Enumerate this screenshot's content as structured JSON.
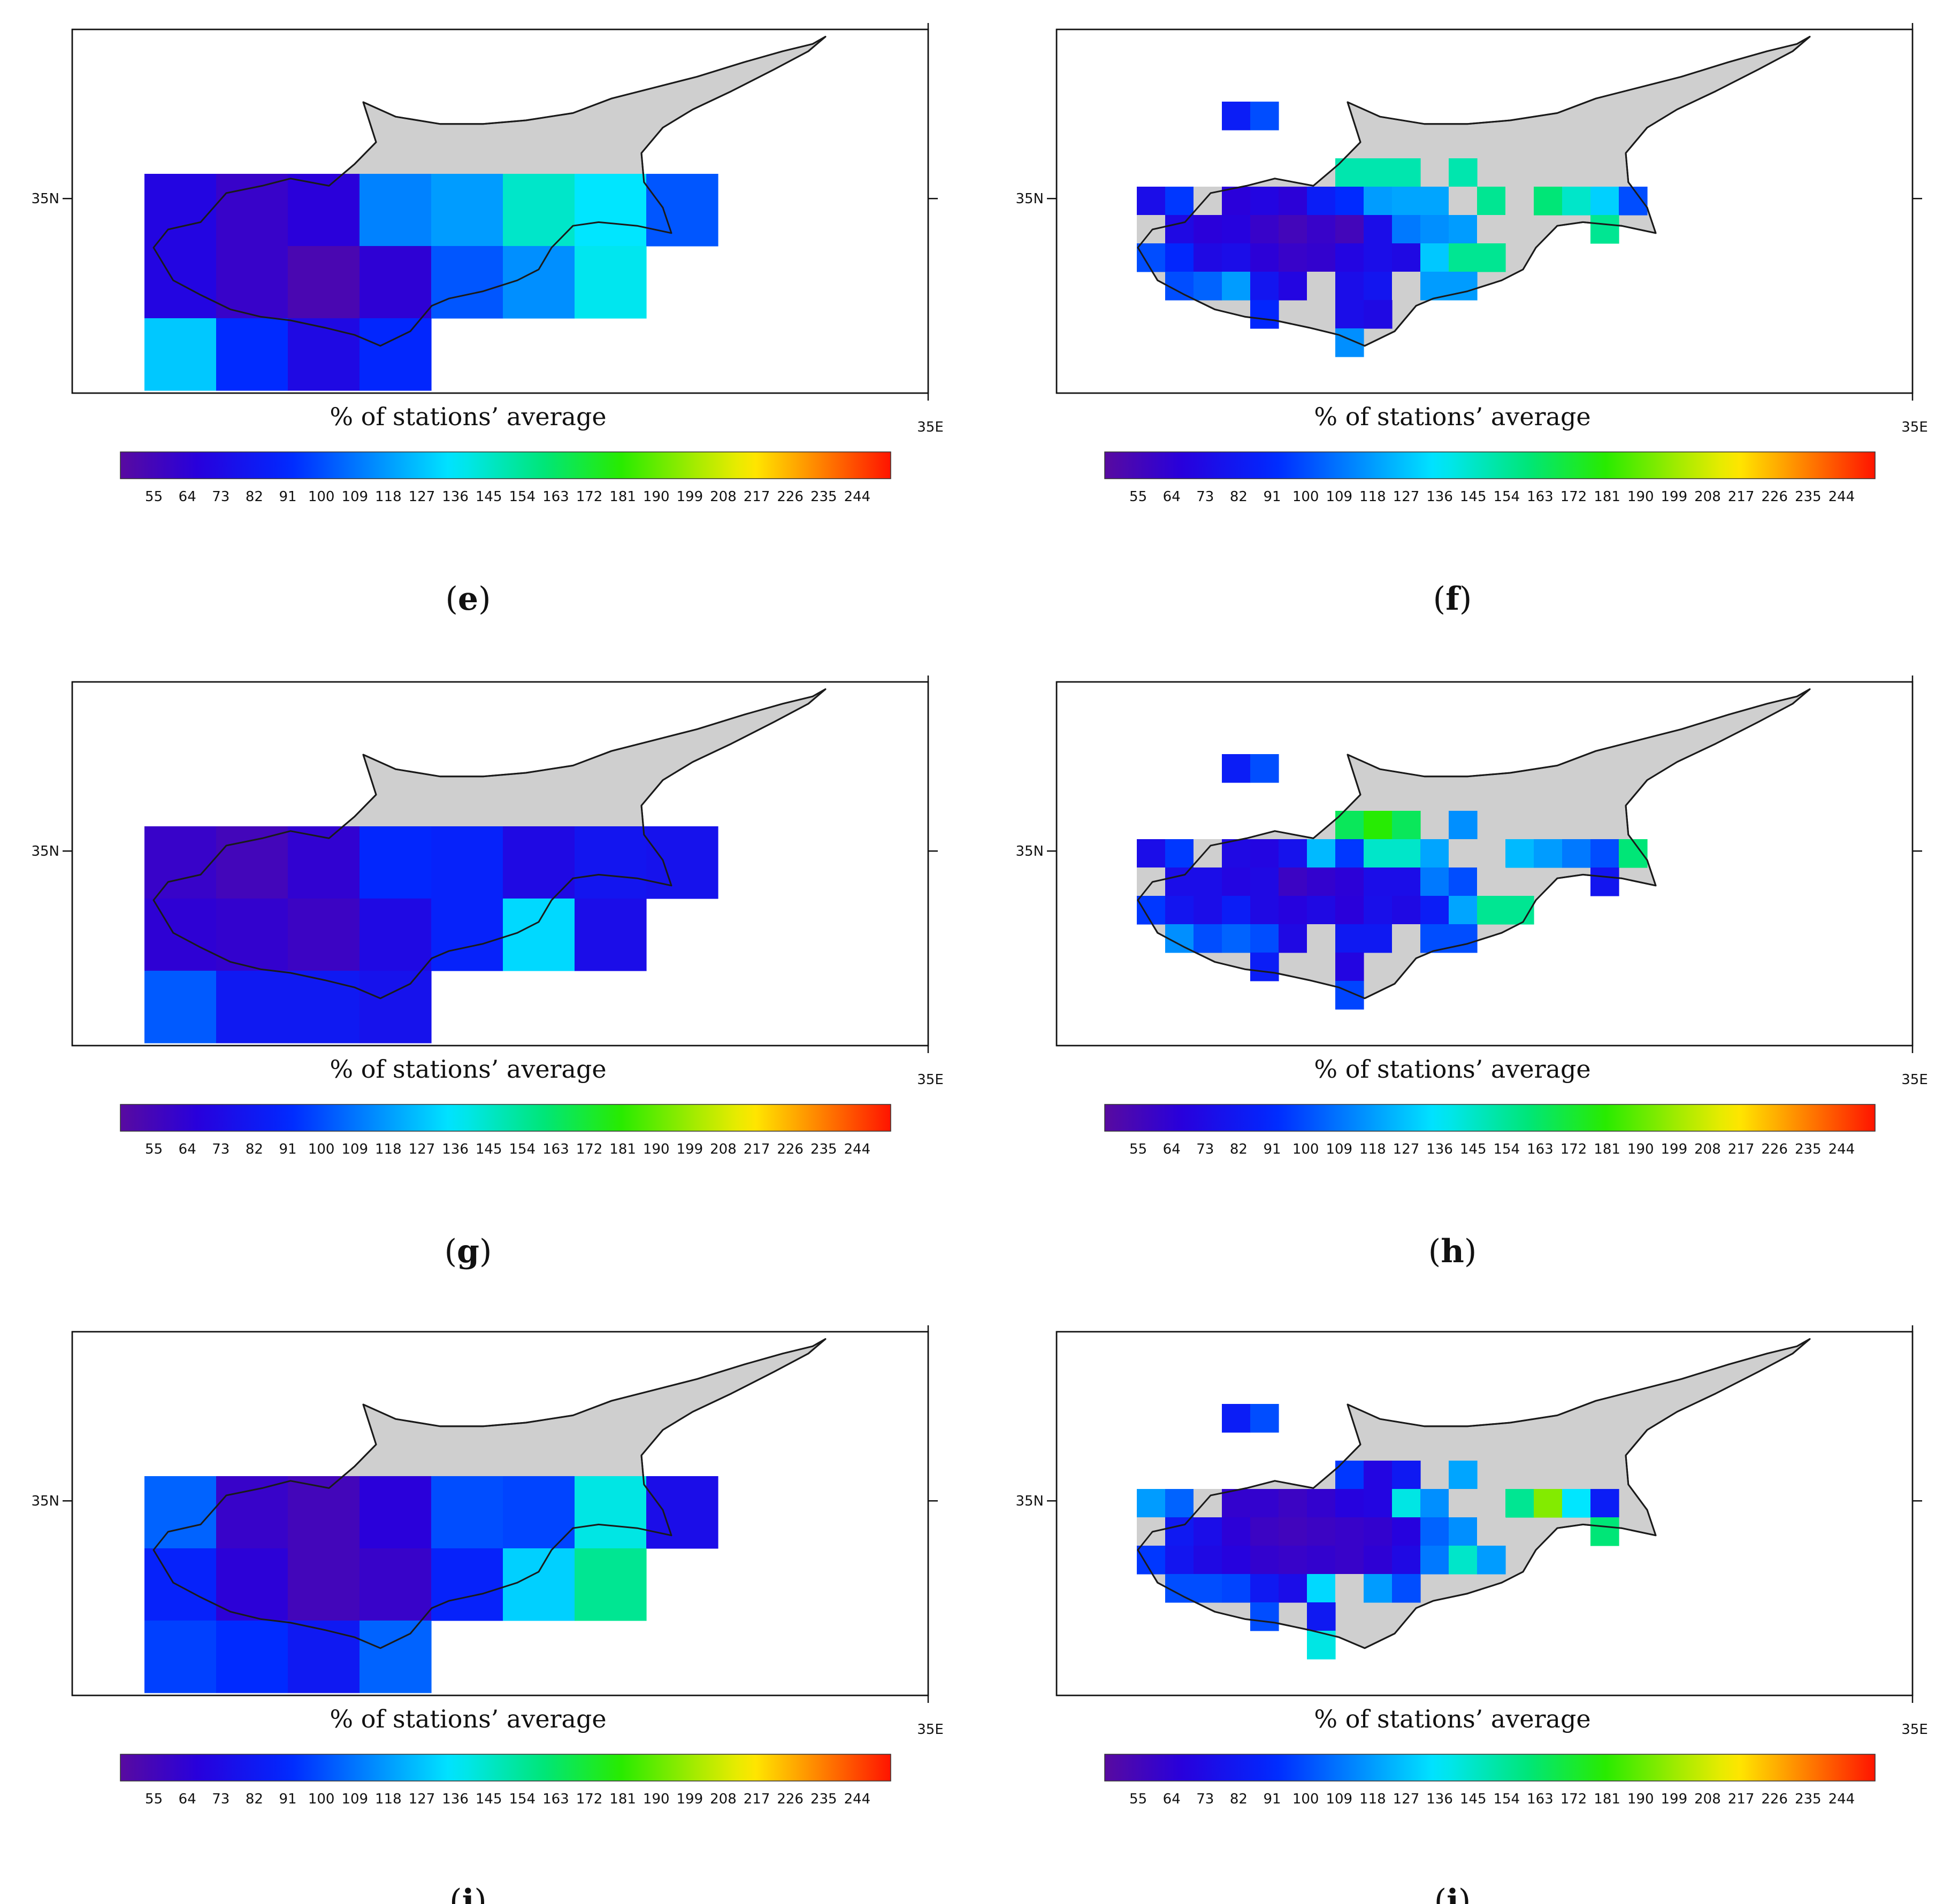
{
  "figure": {
    "panel_labels": [
      "e",
      "f",
      "g",
      "h",
      "i",
      "j"
    ]
  },
  "chart_data": [
    {
      "type": "heatmap",
      "panel": "e",
      "grid": "coarse",
      "xlabel": "35E",
      "ylabel": "35N",
      "title": "% of stations’ average",
      "colorbar": {
        "ticks": [
          55,
          64,
          73,
          82,
          91,
          100,
          109,
          118,
          127,
          136,
          145,
          154,
          163,
          172,
          181,
          190,
          199,
          208,
          217,
          226,
          235,
          244
        ],
        "range": [
          46,
          253
        ],
        "colormap": "rainbow"
      },
      "land_color": "#cfcfcf",
      "rows": [
        [
          null,
          null,
          null,
          null,
          null,
          null,
          null,
          null,
          null,
          null
        ],
        [
          70,
          60,
          66,
          112,
          118,
          145,
          135,
          102,
          null,
          null
        ],
        [
          70,
          60,
          52,
          64,
          102,
          115,
          138,
          null,
          null,
          null
        ],
        [
          128,
          92,
          72,
          90,
          null,
          null,
          null,
          null,
          null,
          null
        ]
      ]
    },
    {
      "type": "heatmap",
      "panel": "f",
      "grid": "fine",
      "xlabel": "35E",
      "ylabel": "35N",
      "title": "% of stations’ average",
      "colorbar": {
        "ticks": [
          55,
          64,
          73,
          82,
          91,
          100,
          109,
          118,
          127,
          136,
          145,
          154,
          163,
          172,
          181,
          190,
          199,
          208,
          217,
          226,
          235,
          244
        ],
        "range": [
          46,
          253
        ],
        "colormap": "rainbow"
      },
      "land_color": "#cfcfcf",
      "rows": [
        [
          null,
          null,
          null,
          85,
          100,
          null,
          null,
          null,
          null,
          null,
          null,
          null,
          null,
          null,
          null,
          null,
          null,
          null,
          null,
          null,
          null,
          null,
          null,
          null
        ],
        [
          null,
          null,
          null,
          null,
          null,
          null,
          null,
          null,
          null,
          null,
          null,
          null,
          null,
          null,
          null,
          null,
          null,
          null,
          null,
          null,
          null,
          null,
          null,
          null
        ],
        [
          null,
          null,
          null,
          null,
          null,
          null,
          null,
          150,
          150,
          150,
          null,
          150,
          null,
          null,
          null,
          null,
          null,
          null,
          null,
          null,
          null,
          null,
          null,
          null
        ],
        [
          75,
          95,
          "L",
          66,
          70,
          65,
          85,
          92,
          118,
          120,
          120,
          "L",
          155,
          "L",
          160,
          145,
          130,
          100,
          null,
          null,
          null,
          null,
          null,
          null
        ],
        [
          "L",
          72,
          66,
          68,
          60,
          55,
          60,
          55,
          75,
          110,
          115,
          118,
          "L",
          null,
          null,
          null,
          155,
          null,
          null,
          null,
          null,
          null,
          null,
          null
        ],
        [
          100,
          90,
          72,
          75,
          65,
          60,
          62,
          70,
          75,
          72,
          128,
          155,
          155,
          null,
          null,
          null,
          null,
          null,
          null,
          null,
          null,
          null,
          null,
          null
        ],
        [
          null,
          100,
          105,
          118,
          80,
          70,
          "L",
          75,
          80,
          "L",
          118,
          118,
          null,
          null,
          null,
          null,
          null,
          null,
          null,
          null,
          null,
          null,
          null,
          null
        ],
        [
          null,
          null,
          null,
          null,
          90,
          null,
          null,
          75,
          72,
          null,
          null,
          null,
          null,
          null,
          null,
          null,
          null,
          null,
          null,
          null,
          null,
          null,
          null,
          null
        ],
        [
          null,
          null,
          null,
          null,
          null,
          null,
          null,
          115,
          null,
          null,
          null,
          null,
          null,
          null,
          null,
          null,
          null,
          null,
          null,
          null,
          null,
          null,
          null,
          null
        ]
      ]
    },
    {
      "type": "heatmap",
      "panel": "g",
      "grid": "coarse",
      "xlabel": "35E",
      "ylabel": "35N",
      "title": "% of stations’ average",
      "colorbar": {
        "ticks": [
          55,
          64,
          73,
          82,
          91,
          100,
          109,
          118,
          127,
          136,
          145,
          154,
          163,
          172,
          181,
          190,
          199,
          208,
          217,
          226,
          235,
          244
        ],
        "range": [
          46,
          253
        ],
        "colormap": "rainbow"
      },
      "land_color": "#cfcfcf",
      "rows": [
        [
          null,
          null,
          null,
          null,
          null,
          null,
          null,
          null,
          null,
          null
        ],
        [
          60,
          55,
          63,
          90,
          88,
          72,
          80,
          78,
          null,
          null
        ],
        [
          64,
          62,
          58,
          72,
          88,
          132,
          75,
          null,
          null,
          null
        ],
        [
          103,
          82,
          82,
          78,
          null,
          null,
          null,
          null,
          null,
          null
        ]
      ]
    },
    {
      "type": "heatmap",
      "panel": "h",
      "grid": "fine",
      "xlabel": "35E",
      "ylabel": "35N",
      "title": "% of stations’ average",
      "colorbar": {
        "ticks": [
          55,
          64,
          73,
          82,
          91,
          100,
          109,
          118,
          127,
          136,
          145,
          154,
          163,
          172,
          181,
          190,
          199,
          208,
          217,
          226,
          235,
          244
        ],
        "range": [
          46,
          253
        ],
        "colormap": "rainbow"
      },
      "land_color": "#cfcfcf",
      "rows": [
        [
          null,
          null,
          null,
          85,
          100,
          null,
          null,
          null,
          null,
          null,
          null,
          null,
          null,
          null,
          null,
          null,
          null,
          null,
          null,
          null,
          null,
          null,
          null,
          null
        ],
        [
          null,
          null,
          null,
          null,
          null,
          null,
          null,
          null,
          null,
          null,
          null,
          null,
          null,
          null,
          null,
          null,
          null,
          null,
          null,
          null,
          null,
          null,
          null,
          null
        ],
        [
          null,
          null,
          null,
          null,
          null,
          null,
          null,
          165,
          180,
          165,
          null,
          115,
          null,
          null,
          null,
          null,
          null,
          null,
          null,
          null,
          null,
          null,
          null,
          null
        ],
        [
          75,
          95,
          "L",
          72,
          70,
          78,
          125,
          95,
          145,
          145,
          120,
          "L",
          null,
          125,
          118,
          110,
          100,
          160,
          null,
          null,
          null,
          null,
          null,
          null
        ],
        [
          "L",
          75,
          75,
          70,
          72,
          58,
          62,
          65,
          75,
          75,
          110,
          100,
          "L",
          null,
          null,
          null,
          80,
          null,
          null,
          null,
          null,
          null,
          null,
          null
        ],
        [
          95,
          80,
          75,
          85,
          72,
          68,
          72,
          66,
          76,
          72,
          85,
          120,
          155,
          155,
          null,
          null,
          null,
          null,
          null,
          null,
          null,
          null,
          null,
          null
        ],
        [
          null,
          115,
          100,
          105,
          100,
          72,
          "L",
          82,
          82,
          "L",
          100,
          100,
          null,
          null,
          null,
          null,
          null,
          null,
          null,
          null,
          null,
          null,
          null,
          null
        ],
        [
          null,
          null,
          null,
          null,
          85,
          null,
          null,
          70,
          null,
          null,
          null,
          null,
          null,
          null,
          null,
          null,
          null,
          null,
          null,
          null,
          null,
          null,
          null,
          null
        ],
        [
          null,
          null,
          null,
          null,
          null,
          null,
          null,
          98,
          null,
          null,
          null,
          null,
          null,
          null,
          null,
          null,
          null,
          null,
          null,
          null,
          null,
          null,
          null,
          null
        ]
      ]
    },
    {
      "type": "heatmap",
      "panel": "i",
      "grid": "coarse",
      "xlabel": "35E",
      "ylabel": "35N",
      "title": "% of stations’ average",
      "colorbar": {
        "ticks": [
          55,
          64,
          73,
          82,
          91,
          100,
          109,
          118,
          127,
          136,
          145,
          154,
          163,
          172,
          181,
          190,
          199,
          208,
          217,
          226,
          235,
          244
        ],
        "range": [
          46,
          253
        ],
        "colormap": "rainbow"
      },
      "land_color": "#cfcfcf",
      "rows": [
        [
          null,
          null,
          null,
          null,
          null,
          null,
          null,
          null,
          null,
          null
        ],
        [
          105,
          60,
          55,
          66,
          100,
          98,
          140,
          75,
          null,
          null
        ],
        [
          88,
          65,
          55,
          60,
          88,
          130,
          155,
          null,
          null,
          null
        ],
        [
          97,
          92,
          82,
          105,
          null,
          null,
          null,
          null,
          null,
          null
        ]
      ]
    },
    {
      "type": "heatmap",
      "panel": "j",
      "grid": "fine",
      "xlabel": "35E",
      "ylabel": "35N",
      "title": "% of stations’ average",
      "colorbar": {
        "ticks": [
          55,
          64,
          73,
          82,
          91,
          100,
          109,
          118,
          127,
          136,
          145,
          154,
          163,
          172,
          181,
          190,
          199,
          208,
          217,
          226,
          235,
          244
        ],
        "range": [
          46,
          253
        ],
        "colormap": "rainbow"
      },
      "land_color": "#cfcfcf",
      "rows": [
        [
          null,
          null,
          null,
          85,
          100,
          null,
          null,
          null,
          null,
          null,
          null,
          null,
          null,
          null,
          null,
          null,
          null,
          null,
          null,
          null,
          null,
          null,
          null,
          null
        ],
        [
          null,
          null,
          null,
          null,
          null,
          null,
          null,
          null,
          null,
          null,
          null,
          null,
          null,
          null,
          null,
          null,
          null,
          null,
          null,
          null,
          null,
          null,
          null,
          null
        ],
        [
          null,
          null,
          null,
          null,
          null,
          null,
          null,
          95,
          70,
          82,
          null,
          120,
          null,
          null,
          null,
          null,
          null,
          null,
          null,
          null,
          null,
          null,
          null,
          null
        ],
        [
          118,
          105,
          "L",
          62,
          62,
          58,
          62,
          68,
          70,
          140,
          115,
          "L",
          "L",
          155,
          195,
          135,
          85,
          null,
          null,
          null,
          null,
          null,
          null,
          null
        ],
        [
          "L",
          82,
          75,
          65,
          58,
          56,
          58,
          60,
          62,
          68,
          105,
          115,
          "L",
          null,
          null,
          null,
          160,
          null,
          null,
          null,
          null,
          null,
          null,
          null
        ],
        [
          95,
          80,
          72,
          68,
          62,
          60,
          62,
          60,
          64,
          72,
          110,
          145,
          118,
          null,
          null,
          null,
          null,
          null,
          null,
          null,
          null,
          null,
          null,
          null
        ],
        [
          null,
          100,
          100,
          98,
          82,
          75,
          132,
          "L",
          118,
          100,
          null,
          null,
          null,
          null,
          null,
          null,
          null,
          null,
          null,
          null,
          null,
          null,
          null,
          null
        ],
        [
          null,
          null,
          null,
          null,
          100,
          null,
          82,
          null,
          null,
          null,
          null,
          null,
          null,
          null,
          null,
          null,
          null,
          null,
          null,
          null,
          null,
          null,
          null,
          null
        ],
        [
          null,
          null,
          null,
          null,
          null,
          null,
          140,
          null,
          null,
          null,
          null,
          null,
          null,
          null,
          null,
          null,
          null,
          null,
          null,
          null,
          null,
          null,
          null,
          null
        ]
      ]
    }
  ]
}
